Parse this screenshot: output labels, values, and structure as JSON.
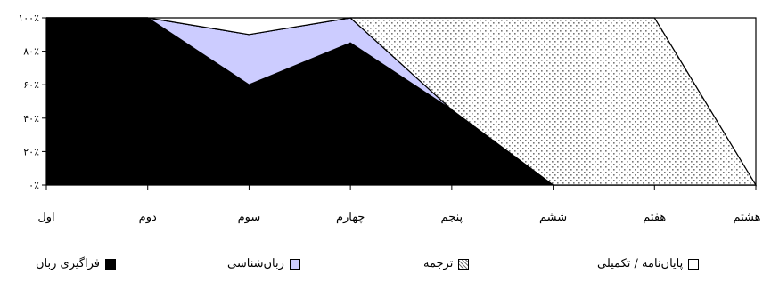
{
  "chart_data": {
    "type": "area",
    "stacked": true,
    "categories": [
      "اول",
      "دوم",
      "سوم",
      "چهارم",
      "پنجم",
      "ششم",
      "هفتم",
      "هشتم"
    ],
    "ylim": [
      0,
      100
    ],
    "y_ticks": [
      "۰٪",
      "۲۰٪",
      "۴۰٪",
      "۶۰٪",
      "۸۰٪",
      "۱۰۰٪"
    ],
    "series": [
      {
        "name": "فراگیری زبان",
        "values": [
          100,
          100,
          60,
          85,
          45,
          0,
          0,
          0
        ],
        "color": "#000000",
        "pattern": "solid"
      },
      {
        "name": "زبان‌شناسی",
        "values": [
          0,
          0,
          30,
          15,
          0,
          0,
          0,
          0
        ],
        "color": "#ccccff",
        "pattern": "solid"
      },
      {
        "name": "ترجمه",
        "values": [
          0,
          0,
          0,
          0,
          55,
          100,
          100,
          0
        ],
        "color": "#808080",
        "pattern": "dots"
      },
      {
        "name": "پایان‌نامه / تکمیلی",
        "values": [
          0,
          0,
          10,
          0,
          0,
          0,
          0,
          100
        ],
        "color": "#ffffff",
        "pattern": "solid"
      }
    ],
    "grid": false,
    "legend_position": "bottom"
  },
  "legend": [
    {
      "label": "فراگیری زبان",
      "swatch": "#000000"
    },
    {
      "label": "زبان‌شناسی",
      "swatch": "#ccccff"
    },
    {
      "label": "ترجمه",
      "swatch": "pattern"
    },
    {
      "label": "پایان‌نامه / تکمیلی",
      "swatch": "#ffffff"
    }
  ]
}
